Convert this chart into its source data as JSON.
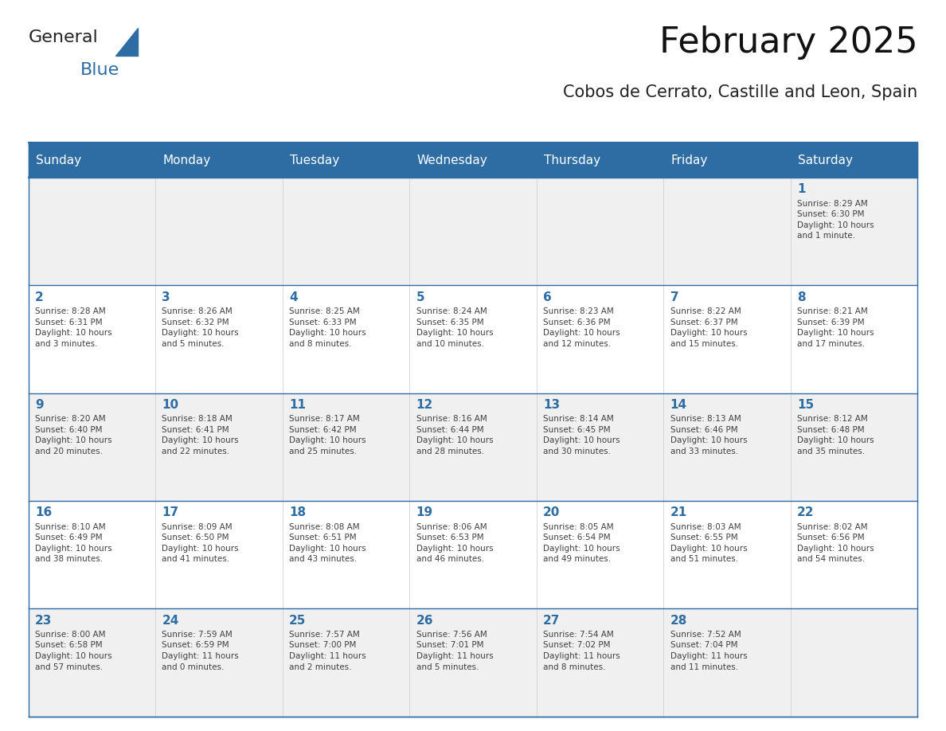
{
  "title": "February 2025",
  "subtitle": "Cobos de Cerrato, Castille and Leon, Spain",
  "header_bg": "#2E6DA4",
  "header_text_color": "#FFFFFF",
  "cell_bg_light": "#F0F0F0",
  "cell_bg_white": "#FFFFFF",
  "day_number_color": "#2E6DA4",
  "cell_text_color": "#404040",
  "border_color": "#2E6DA4",
  "days_of_week": [
    "Sunday",
    "Monday",
    "Tuesday",
    "Wednesday",
    "Thursday",
    "Friday",
    "Saturday"
  ],
  "weeks": [
    [
      {
        "day": 0,
        "text": ""
      },
      {
        "day": 0,
        "text": ""
      },
      {
        "day": 0,
        "text": ""
      },
      {
        "day": 0,
        "text": ""
      },
      {
        "day": 0,
        "text": ""
      },
      {
        "day": 0,
        "text": ""
      },
      {
        "day": 1,
        "text": "Sunrise: 8:29 AM\nSunset: 6:30 PM\nDaylight: 10 hours\nand 1 minute."
      }
    ],
    [
      {
        "day": 2,
        "text": "Sunrise: 8:28 AM\nSunset: 6:31 PM\nDaylight: 10 hours\nand 3 minutes."
      },
      {
        "day": 3,
        "text": "Sunrise: 8:26 AM\nSunset: 6:32 PM\nDaylight: 10 hours\nand 5 minutes."
      },
      {
        "day": 4,
        "text": "Sunrise: 8:25 AM\nSunset: 6:33 PM\nDaylight: 10 hours\nand 8 minutes."
      },
      {
        "day": 5,
        "text": "Sunrise: 8:24 AM\nSunset: 6:35 PM\nDaylight: 10 hours\nand 10 minutes."
      },
      {
        "day": 6,
        "text": "Sunrise: 8:23 AM\nSunset: 6:36 PM\nDaylight: 10 hours\nand 12 minutes."
      },
      {
        "day": 7,
        "text": "Sunrise: 8:22 AM\nSunset: 6:37 PM\nDaylight: 10 hours\nand 15 minutes."
      },
      {
        "day": 8,
        "text": "Sunrise: 8:21 AM\nSunset: 6:39 PM\nDaylight: 10 hours\nand 17 minutes."
      }
    ],
    [
      {
        "day": 9,
        "text": "Sunrise: 8:20 AM\nSunset: 6:40 PM\nDaylight: 10 hours\nand 20 minutes."
      },
      {
        "day": 10,
        "text": "Sunrise: 8:18 AM\nSunset: 6:41 PM\nDaylight: 10 hours\nand 22 minutes."
      },
      {
        "day": 11,
        "text": "Sunrise: 8:17 AM\nSunset: 6:42 PM\nDaylight: 10 hours\nand 25 minutes."
      },
      {
        "day": 12,
        "text": "Sunrise: 8:16 AM\nSunset: 6:44 PM\nDaylight: 10 hours\nand 28 minutes."
      },
      {
        "day": 13,
        "text": "Sunrise: 8:14 AM\nSunset: 6:45 PM\nDaylight: 10 hours\nand 30 minutes."
      },
      {
        "day": 14,
        "text": "Sunrise: 8:13 AM\nSunset: 6:46 PM\nDaylight: 10 hours\nand 33 minutes."
      },
      {
        "day": 15,
        "text": "Sunrise: 8:12 AM\nSunset: 6:48 PM\nDaylight: 10 hours\nand 35 minutes."
      }
    ],
    [
      {
        "day": 16,
        "text": "Sunrise: 8:10 AM\nSunset: 6:49 PM\nDaylight: 10 hours\nand 38 minutes."
      },
      {
        "day": 17,
        "text": "Sunrise: 8:09 AM\nSunset: 6:50 PM\nDaylight: 10 hours\nand 41 minutes."
      },
      {
        "day": 18,
        "text": "Sunrise: 8:08 AM\nSunset: 6:51 PM\nDaylight: 10 hours\nand 43 minutes."
      },
      {
        "day": 19,
        "text": "Sunrise: 8:06 AM\nSunset: 6:53 PM\nDaylight: 10 hours\nand 46 minutes."
      },
      {
        "day": 20,
        "text": "Sunrise: 8:05 AM\nSunset: 6:54 PM\nDaylight: 10 hours\nand 49 minutes."
      },
      {
        "day": 21,
        "text": "Sunrise: 8:03 AM\nSunset: 6:55 PM\nDaylight: 10 hours\nand 51 minutes."
      },
      {
        "day": 22,
        "text": "Sunrise: 8:02 AM\nSunset: 6:56 PM\nDaylight: 10 hours\nand 54 minutes."
      }
    ],
    [
      {
        "day": 23,
        "text": "Sunrise: 8:00 AM\nSunset: 6:58 PM\nDaylight: 10 hours\nand 57 minutes."
      },
      {
        "day": 24,
        "text": "Sunrise: 7:59 AM\nSunset: 6:59 PM\nDaylight: 11 hours\nand 0 minutes."
      },
      {
        "day": 25,
        "text": "Sunrise: 7:57 AM\nSunset: 7:00 PM\nDaylight: 11 hours\nand 2 minutes."
      },
      {
        "day": 26,
        "text": "Sunrise: 7:56 AM\nSunset: 7:01 PM\nDaylight: 11 hours\nand 5 minutes."
      },
      {
        "day": 27,
        "text": "Sunrise: 7:54 AM\nSunset: 7:02 PM\nDaylight: 11 hours\nand 8 minutes."
      },
      {
        "day": 28,
        "text": "Sunrise: 7:52 AM\nSunset: 7:04 PM\nDaylight: 11 hours\nand 11 minutes."
      },
      {
        "day": 0,
        "text": ""
      }
    ]
  ],
  "logo_general_color": "#222222",
  "logo_blue_color": "#2E6DA4"
}
